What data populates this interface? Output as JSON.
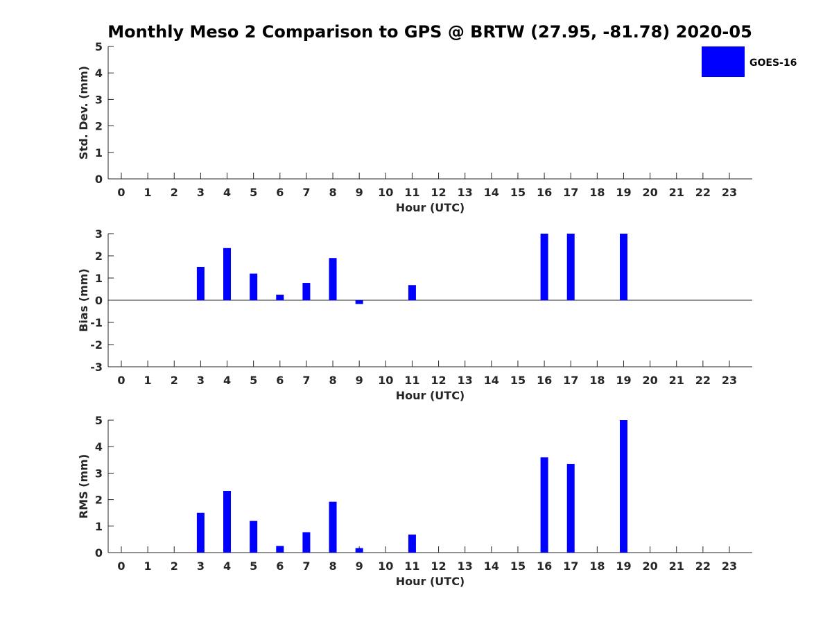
{
  "chart_data": {
    "type": "bar",
    "title": "Monthly Meso 2 Comparison to GPS @ BRTW (27.95, -81.78) 2020-05",
    "legend": {
      "entries": [
        "GOES-16"
      ],
      "placement": "top-right"
    },
    "bar_color": "#0000ff",
    "grid": false,
    "panels": [
      {
        "name": "std-dev",
        "xlabel": "Hour (UTC)",
        "ylabel": "Std. Dev. (mm)",
        "ylim": [
          0,
          5
        ],
        "yticks": [
          "0",
          "1",
          "2",
          "3",
          "4",
          "5"
        ],
        "categories": [
          "0",
          "1",
          "2",
          "3",
          "4",
          "5",
          "6",
          "7",
          "8",
          "9",
          "10",
          "11",
          "12",
          "13",
          "14",
          "15",
          "16",
          "17",
          "18",
          "19",
          "20",
          "21",
          "22",
          "23"
        ],
        "series": [
          {
            "name": "GOES-16",
            "values": []
          }
        ]
      },
      {
        "name": "bias",
        "xlabel": "Hour (UTC)",
        "ylabel": "Bias (mm)",
        "ylim": [
          -3,
          3
        ],
        "yticks": [
          "-3",
          "-2",
          "-1",
          "0",
          "1",
          "2",
          "3"
        ],
        "zero_line": true,
        "categories": [
          "0",
          "1",
          "2",
          "3",
          "4",
          "5",
          "6",
          "7",
          "8",
          "9",
          "10",
          "11",
          "12",
          "13",
          "14",
          "15",
          "16",
          "17",
          "18",
          "19",
          "20",
          "21",
          "22",
          "23"
        ],
        "series": [
          {
            "name": "GOES-16",
            "values": [
              {
                "x": 3,
                "y": 1.5
              },
              {
                "x": 4,
                "y": 2.35
              },
              {
                "x": 5,
                "y": 1.2
              },
              {
                "x": 6,
                "y": 0.25
              },
              {
                "x": 7,
                "y": 0.78
              },
              {
                "x": 8,
                "y": 1.9
              },
              {
                "x": 9,
                "y": -0.17
              },
              {
                "x": 11,
                "y": 0.68
              },
              {
                "x": 16,
                "y": 3.0
              },
              {
                "x": 17,
                "y": 3.0
              },
              {
                "x": 19,
                "y": 3.0
              }
            ]
          }
        ]
      },
      {
        "name": "rms",
        "xlabel": "Hour (UTC)",
        "ylabel": "RMS (mm)",
        "ylim": [
          0,
          5
        ],
        "yticks": [
          "0",
          "1",
          "2",
          "3",
          "4",
          "5"
        ],
        "categories": [
          "0",
          "1",
          "2",
          "3",
          "4",
          "5",
          "6",
          "7",
          "8",
          "9",
          "10",
          "11",
          "12",
          "13",
          "14",
          "15",
          "16",
          "17",
          "18",
          "19",
          "20",
          "21",
          "22",
          "23"
        ],
        "series": [
          {
            "name": "GOES-16",
            "values": [
              {
                "x": 3,
                "y": 1.5
              },
              {
                "x": 4,
                "y": 2.33
              },
              {
                "x": 5,
                "y": 1.2
              },
              {
                "x": 6,
                "y": 0.25
              },
              {
                "x": 7,
                "y": 0.77
              },
              {
                "x": 8,
                "y": 1.92
              },
              {
                "x": 9,
                "y": 0.17
              },
              {
                "x": 11,
                "y": 0.68
              },
              {
                "x": 16,
                "y": 3.6
              },
              {
                "x": 17,
                "y": 3.35
              },
              {
                "x": 19,
                "y": 5.0
              }
            ]
          }
        ]
      }
    ]
  }
}
